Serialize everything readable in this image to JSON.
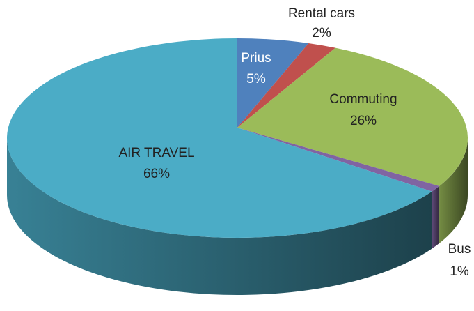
{
  "chart_data": {
    "type": "pie",
    "categories": [
      "Prius",
      "Rental cars",
      "Commuting",
      "Bus",
      "AIR TRAVEL"
    ],
    "values": [
      5,
      2,
      26,
      1,
      66
    ],
    "value_labels": [
      "5%",
      "2%",
      "26%",
      "1%",
      "66%"
    ],
    "colors": [
      "#4f81bd",
      "#c0504d",
      "#9bbb59",
      "#8064a2",
      "#4bacc6"
    ]
  }
}
